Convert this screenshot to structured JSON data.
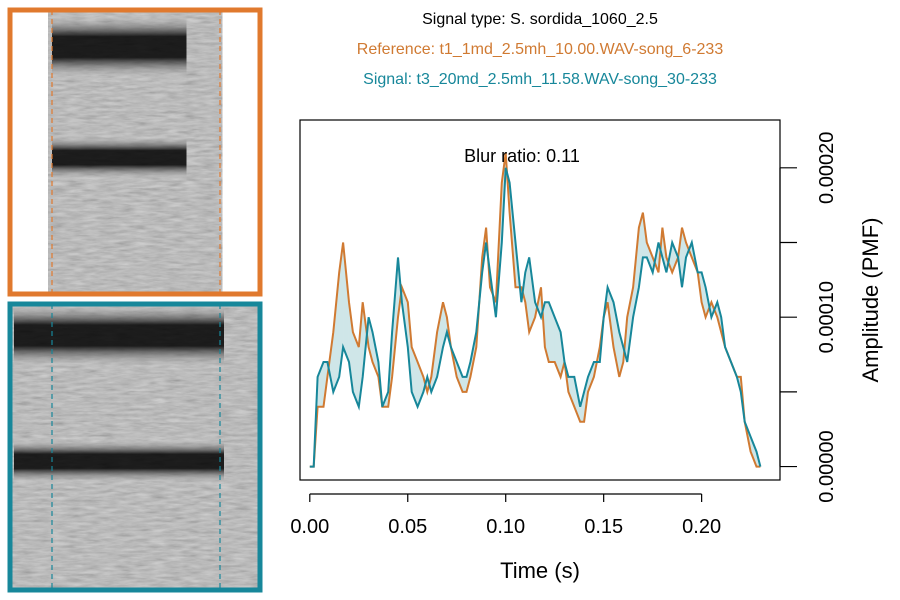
{
  "header": {
    "signal_type": "Signal type: S. sordida_1060_2.5",
    "reference": "Reference: t1_1md_2.5mh_10.00.WAV-song_6-233",
    "signal": "Signal: t3_20md_2.5mh_11.58.WAV-song_30-233"
  },
  "colors": {
    "reference": "#d07a32",
    "signal": "#17879a",
    "fill": "#cfe6e8",
    "axis": "#000000"
  },
  "spectrograms": [
    {
      "name": "reference",
      "border_color": "#e0792e",
      "band_high": 0.13,
      "band_low": 0.52,
      "start": 0.0,
      "end": 0.85
    },
    {
      "name": "signal",
      "border_color": "#17879a",
      "band_high": 0.11,
      "band_low": 0.55,
      "start": 0.0,
      "end": 1.0
    }
  ],
  "chart_data": {
    "type": "line",
    "annotation": "Blur ratio: 0.11",
    "xlabel": "Time (s)",
    "ylabel": "Amplitude (PMF)",
    "xlim": [
      -0.005,
      0.24
    ],
    "ylim": [
      -9e-06,
      0.000232
    ],
    "x_ticks": [
      0.0,
      0.05,
      0.1,
      0.15,
      0.2
    ],
    "x_tick_labels": [
      "0.00",
      "0.05",
      "0.10",
      "0.15",
      "0.20"
    ],
    "y_ticks": [
      0.0,
      5e-05,
      0.0001,
      0.00015,
      0.0002
    ],
    "y_tick_labels": [
      "0.00000",
      "",
      "0.00010",
      "",
      "0.00020"
    ],
    "series": [
      {
        "name": "Reference",
        "x": [
          0.0,
          0.002,
          0.004,
          0.007,
          0.009,
          0.012,
          0.015,
          0.017,
          0.02,
          0.022,
          0.025,
          0.027,
          0.03,
          0.032,
          0.035,
          0.037,
          0.04,
          0.042,
          0.045,
          0.047,
          0.05,
          0.052,
          0.055,
          0.058,
          0.06,
          0.062,
          0.065,
          0.068,
          0.07,
          0.072,
          0.075,
          0.078,
          0.08,
          0.082,
          0.085,
          0.088,
          0.09,
          0.092,
          0.095,
          0.098,
          0.1,
          0.102,
          0.105,
          0.108,
          0.11,
          0.112,
          0.115,
          0.118,
          0.12,
          0.122,
          0.125,
          0.128,
          0.13,
          0.132,
          0.135,
          0.138,
          0.14,
          0.142,
          0.145,
          0.148,
          0.15,
          0.152,
          0.155,
          0.158,
          0.16,
          0.162,
          0.165,
          0.168,
          0.17,
          0.172,
          0.175,
          0.178,
          0.18,
          0.182,
          0.185,
          0.188,
          0.19,
          0.192,
          0.195,
          0.198,
          0.2,
          0.202,
          0.205,
          0.208,
          0.21,
          0.212,
          0.215,
          0.218,
          0.22,
          0.222,
          0.225,
          0.228,
          0.23
        ],
        "y": [
          0.0,
          0.0,
          4e-05,
          4e-05,
          6e-05,
          9e-05,
          0.00013,
          0.00015,
          0.00011,
          9e-05,
          8e-05,
          0.00011,
          8e-05,
          7e-05,
          6e-05,
          4e-05,
          4e-05,
          6e-05,
          0.0001,
          0.00012,
          0.00011,
          8e-05,
          7e-05,
          6e-05,
          5e-05,
          6e-05,
          9e-05,
          0.00011,
          0.0001,
          8e-05,
          6e-05,
          5e-05,
          5e-05,
          6e-05,
          8e-05,
          0.00014,
          0.00016,
          0.00012,
          0.00011,
          0.00019,
          0.00021,
          0.00017,
          0.00012,
          0.00012,
          0.00011,
          9e-05,
          0.0001,
          0.00012,
          8e-05,
          7e-05,
          7e-05,
          6e-05,
          7e-05,
          5e-05,
          4e-05,
          3e-05,
          3e-05,
          5e-05,
          6e-05,
          8e-05,
          0.0001,
          0.00011,
          8e-05,
          6e-05,
          7e-05,
          0.0001,
          0.00012,
          0.00016,
          0.00017,
          0.00015,
          0.00014,
          0.00013,
          0.00016,
          0.00014,
          0.00013,
          0.00014,
          0.00016,
          0.00015,
          0.00014,
          0.00013,
          0.00011,
          0.0001,
          0.00011,
          0.0001,
          9e-05,
          8e-05,
          7e-05,
          6e-05,
          6e-05,
          3e-05,
          1e-05,
          0.0,
          0.0
        ]
      },
      {
        "name": "Signal",
        "x": [
          0.0,
          0.002,
          0.004,
          0.007,
          0.009,
          0.012,
          0.015,
          0.017,
          0.02,
          0.022,
          0.025,
          0.027,
          0.03,
          0.032,
          0.035,
          0.037,
          0.04,
          0.042,
          0.045,
          0.047,
          0.05,
          0.052,
          0.055,
          0.058,
          0.06,
          0.062,
          0.065,
          0.068,
          0.07,
          0.072,
          0.075,
          0.078,
          0.08,
          0.082,
          0.085,
          0.088,
          0.09,
          0.092,
          0.095,
          0.098,
          0.1,
          0.102,
          0.105,
          0.108,
          0.11,
          0.112,
          0.115,
          0.118,
          0.12,
          0.122,
          0.125,
          0.128,
          0.13,
          0.132,
          0.135,
          0.138,
          0.14,
          0.142,
          0.145,
          0.148,
          0.15,
          0.152,
          0.155,
          0.158,
          0.16,
          0.162,
          0.165,
          0.168,
          0.17,
          0.172,
          0.175,
          0.178,
          0.18,
          0.182,
          0.185,
          0.188,
          0.19,
          0.192,
          0.195,
          0.198,
          0.2,
          0.202,
          0.205,
          0.208,
          0.21,
          0.212,
          0.215,
          0.218,
          0.22,
          0.222,
          0.225,
          0.228,
          0.23
        ],
        "y": [
          0.0,
          0.0,
          6e-05,
          7e-05,
          7e-05,
          5e-05,
          6e-05,
          8e-05,
          7e-05,
          5e-05,
          4e-05,
          6e-05,
          0.0001,
          9e-05,
          7e-05,
          4e-05,
          5e-05,
          9e-05,
          0.00014,
          0.00011,
          8e-05,
          5e-05,
          4e-05,
          5e-05,
          6e-05,
          5e-05,
          6e-05,
          8e-05,
          9e-05,
          8e-05,
          7e-05,
          6e-05,
          6e-05,
          7e-05,
          9e-05,
          0.00013,
          0.00015,
          0.00013,
          0.0001,
          0.00015,
          0.0002,
          0.00019,
          0.00015,
          0.00011,
          0.00013,
          0.00014,
          0.00011,
          0.0001,
          0.00011,
          0.00011,
          0.0001,
          9e-05,
          7e-05,
          6e-05,
          6e-05,
          4e-05,
          5e-05,
          6e-05,
          7e-05,
          7e-05,
          0.0001,
          0.00012,
          0.00011,
          9e-05,
          8e-05,
          7e-05,
          0.0001,
          0.00012,
          0.00014,
          0.00014,
          0.00013,
          0.00015,
          0.00014,
          0.00013,
          0.00015,
          0.00014,
          0.00012,
          0.00014,
          0.00015,
          0.00013,
          0.00013,
          0.00012,
          0.0001,
          0.00011,
          0.0001,
          8e-05,
          7e-05,
          6e-05,
          5e-05,
          3e-05,
          2e-05,
          1e-05,
          0.0
        ]
      }
    ]
  }
}
